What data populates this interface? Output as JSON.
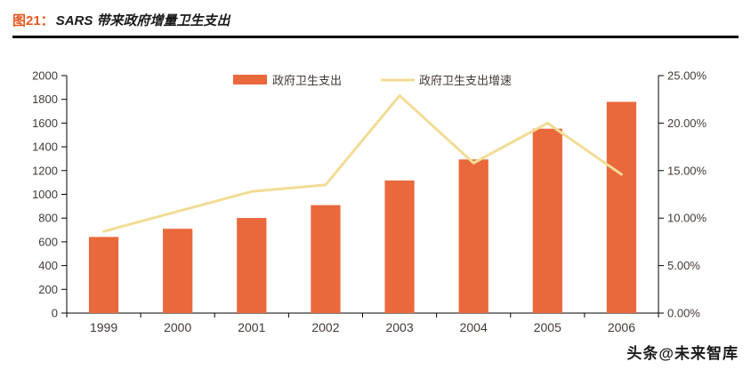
{
  "header": {
    "figure_label": "图21：",
    "title": "SARS 带来政府增量卫生支出"
  },
  "chart_data": {
    "type": "bar",
    "subtype": "bar+line combo",
    "title": "SARS 带来政府增量卫生支出",
    "categories": [
      "1999",
      "2000",
      "2001",
      "2002",
      "2003",
      "2004",
      "2005",
      "2006"
    ],
    "series": [
      {
        "name": "政府卫生支出",
        "type": "bar",
        "axis": "left",
        "color": "#e9693c",
        "values": [
          641,
          710,
          801,
          909,
          1117,
          1294,
          1553,
          1779
        ]
      },
      {
        "name": "政府卫生支出增速",
        "type": "line",
        "axis": "right",
        "color": "#f2dc94",
        "values": [
          8.6,
          10.7,
          12.8,
          13.5,
          22.9,
          15.8,
          20.0,
          14.6
        ]
      }
    ],
    "left_axis": {
      "min": 0,
      "max": 2000,
      "step": 200
    },
    "right_axis": {
      "min": 0,
      "max": 25,
      "step": 5,
      "suffix": "%",
      "decimals": 2
    },
    "legend_position": "top-center-inside",
    "grid": false
  },
  "watermark": {
    "text": "头条@未来智库"
  },
  "colors": {
    "bar": "#e9693c",
    "line": "#f2dc94",
    "title_accent": "#e4581f",
    "underline": "#000000",
    "axis_text": "#433a35",
    "axis_line": "#000000"
  }
}
